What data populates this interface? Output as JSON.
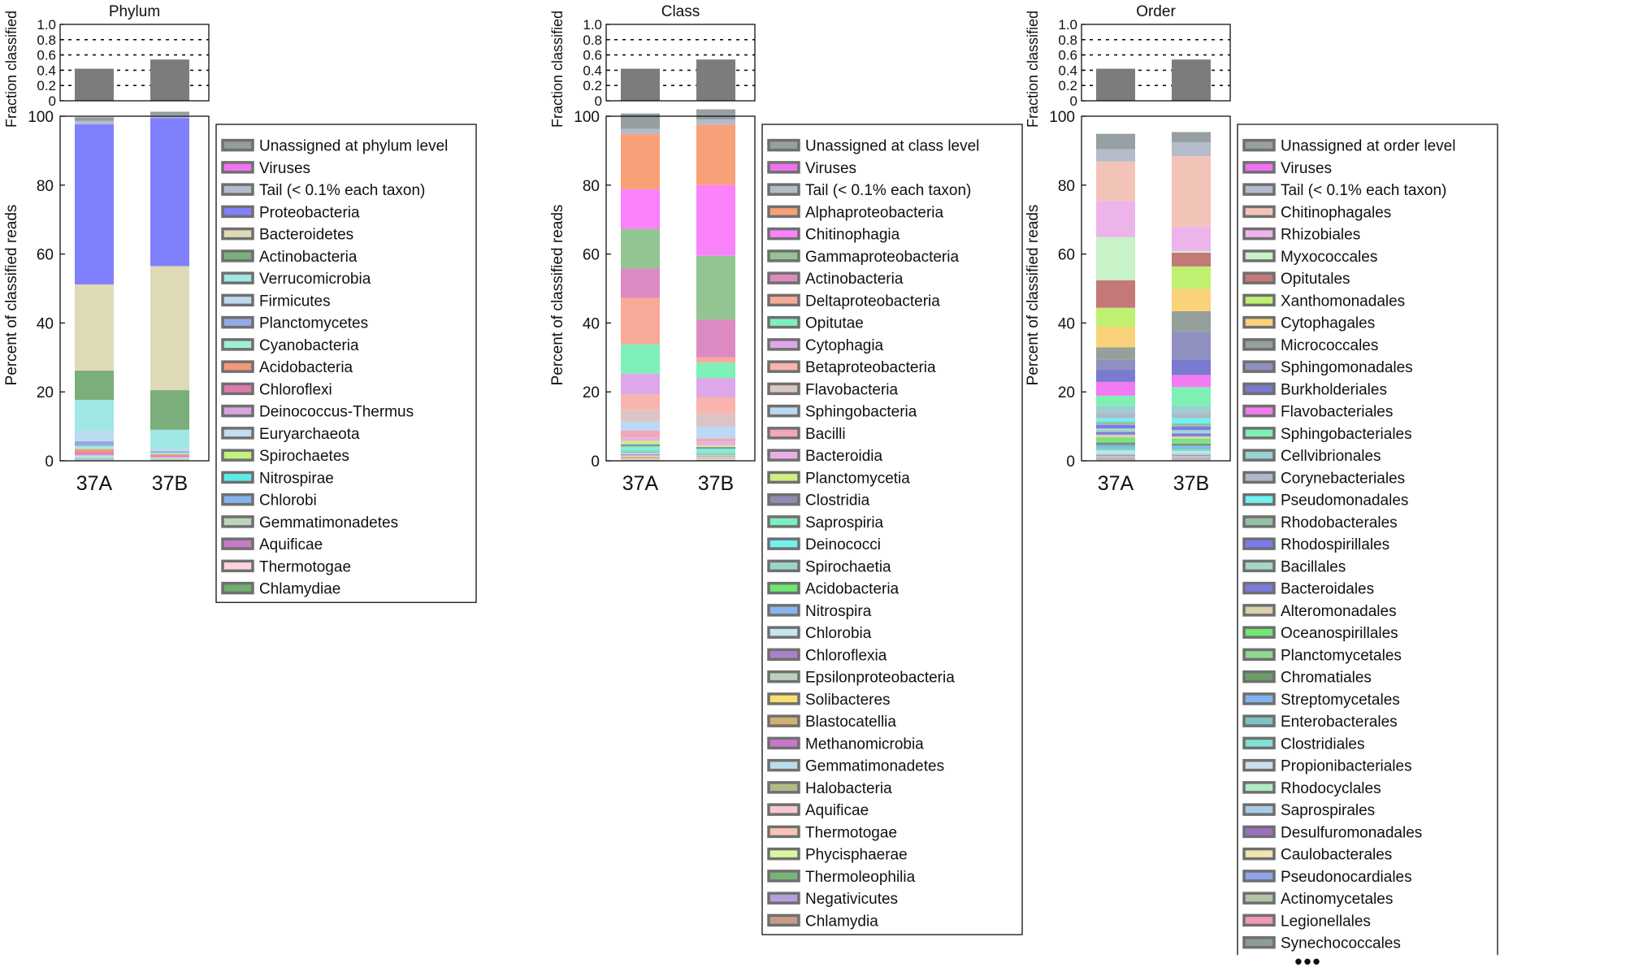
{
  "chart_data": [
    {
      "type": "stacked-bar",
      "title": "Phylum",
      "categories": [
        "37A",
        "37B"
      ],
      "fraction_chart": {
        "ylabel": "Fraction classified",
        "ylim": [
          0,
          1
        ],
        "yticks": [
          "0",
          "0.2",
          "0.4",
          "0.6",
          "0.8",
          "1.0"
        ],
        "values": [
          0.42,
          0.54
        ]
      },
      "ylabel": "Percent of classified reads",
      "ylim": [
        0,
        100
      ],
      "yticks": [
        "0",
        "20",
        "40",
        "60",
        "80",
        "100"
      ],
      "series": [
        {
          "name": "Unassigned at phylum level",
          "color": "#939c9e",
          "values": [
            1.0,
            1.0
          ]
        },
        {
          "name": "Viruses",
          "color": "#f074f0",
          "values": [
            0.0,
            0.0
          ]
        },
        {
          "name": "Tail (< 0.1% each taxon)",
          "color": "#b4bccc",
          "values": [
            1.0,
            0.8
          ]
        },
        {
          "name": "Proteobacteria",
          "color": "#8080fc",
          "values": [
            46.5,
            43.0
          ]
        },
        {
          "name": "Bacteroidetes",
          "color": "#dddab5",
          "values": [
            25.0,
            36.0
          ]
        },
        {
          "name": "Actinobacteria",
          "color": "#7aae7a",
          "values": [
            8.5,
            11.5
          ]
        },
        {
          "name": "Verrucomicrobia",
          "color": "#9fe8e4",
          "values": [
            9.0,
            5.5
          ]
        },
        {
          "name": "Firmicutes",
          "color": "#bcdaf0",
          "values": [
            3.0,
            0.7
          ]
        },
        {
          "name": "Planctomycetes",
          "color": "#95a8e8",
          "values": [
            1.4,
            0.5
          ]
        },
        {
          "name": "Cyanobacteria",
          "color": "#a0f0d0",
          "values": [
            0.9,
            0.4
          ]
        },
        {
          "name": "Acidobacteria",
          "color": "#f2997a",
          "values": [
            0.9,
            0.5
          ]
        },
        {
          "name": "Chloroflexi",
          "color": "#e07aae",
          "values": [
            0.6,
            0.3
          ]
        },
        {
          "name": "Deinococcus-Thermus",
          "color": "#d7a5e0",
          "values": [
            0.4,
            0.2
          ]
        },
        {
          "name": "Euryarchaeota",
          "color": "#c4ddf5",
          "values": [
            0.4,
            0.2
          ]
        },
        {
          "name": "Spirochaetes",
          "color": "#c3f27c",
          "values": [
            0.2,
            0.1
          ]
        },
        {
          "name": "Nitrospirae",
          "color": "#5deaea",
          "values": [
            0.2,
            0.1
          ]
        },
        {
          "name": "Chlorobi",
          "color": "#85b3ea",
          "values": [
            0.2,
            0.1
          ]
        },
        {
          "name": "Gemmatimonadetes",
          "color": "#bdd5bd",
          "values": [
            0.2,
            0.1
          ]
        },
        {
          "name": "Aquificae",
          "color": "#c47cc4",
          "values": [
            0.1,
            0.1
          ]
        },
        {
          "name": "Thermotogae",
          "color": "#fcd5dc",
          "values": [
            0.1,
            0.1
          ]
        },
        {
          "name": "Chlamydiae",
          "color": "#6fae6f",
          "values": [
            0.1,
            0.1
          ]
        }
      ]
    },
    {
      "type": "stacked-bar",
      "title": "Class",
      "categories": [
        "37A",
        "37B"
      ],
      "fraction_chart": {
        "ylabel": "Fraction classified",
        "ylim": [
          0,
          1
        ],
        "yticks": [
          "0",
          "0.2",
          "0.4",
          "0.6",
          "0.8",
          "1.0"
        ],
        "values": [
          0.42,
          0.54
        ]
      },
      "ylabel": "Percent of classified reads",
      "ylim": [
        0,
        100
      ],
      "yticks": [
        "0",
        "20",
        "40",
        "60",
        "80",
        "100"
      ],
      "series": [
        {
          "name": "Unassigned at class level",
          "color": "#969fa1",
          "values": [
            4.5,
            3.0
          ]
        },
        {
          "name": "Viruses",
          "color": "#f070f0",
          "values": [
            0.0,
            0.0
          ]
        },
        {
          "name": "Tail (< 0.1% each taxon)",
          "color": "#b4bccc",
          "values": [
            1.5,
            1.5
          ]
        },
        {
          "name": "Alphaproteobacteria",
          "color": "#f8a078",
          "values": [
            16.0,
            17.5
          ]
        },
        {
          "name": "Chitinophagia",
          "color": "#fa82fa",
          "values": [
            11.5,
            20.5
          ]
        },
        {
          "name": "Gammaproteobacteria",
          "color": "#92c592",
          "values": [
            11.5,
            18.5
          ]
        },
        {
          "name": "Actinobacteria",
          "color": "#de8ac2",
          "values": [
            8.5,
            11.0
          ]
        },
        {
          "name": "Deltaproteobacteria",
          "color": "#f8aa98",
          "values": [
            13.5,
            1.5
          ]
        },
        {
          "name": "Opitutae",
          "color": "#7df0b8",
          "values": [
            8.5,
            4.5
          ]
        },
        {
          "name": "Cytophagia",
          "color": "#dda8ea",
          "values": [
            6.0,
            5.5
          ]
        },
        {
          "name": "Betaproteobacteria",
          "color": "#f8b4ad",
          "values": [
            4.5,
            5.0
          ]
        },
        {
          "name": "Flavobacteria",
          "color": "#dcc4c4",
          "values": [
            3.5,
            3.5
          ]
        },
        {
          "name": "Sphingobacteria",
          "color": "#bcd8f2",
          "values": [
            2.5,
            3.5
          ]
        },
        {
          "name": "Bacilli",
          "color": "#f0a8b8",
          "values": [
            2.0,
            1.0
          ]
        },
        {
          "name": "Bacteroidia",
          "color": "#e6b0e6",
          "values": [
            1.0,
            1.0
          ]
        },
        {
          "name": "Planctomycetia",
          "color": "#cdf080",
          "values": [
            1.0,
            0.5
          ]
        },
        {
          "name": "Clostridia",
          "color": "#8c8cb0",
          "values": [
            0.6,
            0.5
          ]
        },
        {
          "name": "Saprospiria",
          "color": "#7af0c0",
          "values": [
            0.5,
            0.5
          ]
        },
        {
          "name": "Deinococci",
          "color": "#70f0f0",
          "values": [
            0.5,
            0.4
          ]
        },
        {
          "name": "Spirochaetia",
          "color": "#9ad6cc",
          "values": [
            0.4,
            0.4
          ]
        },
        {
          "name": "Acidobacteria",
          "color": "#6ee86e",
          "values": [
            0.3,
            0.3
          ]
        },
        {
          "name": "Nitrospira",
          "color": "#88b4f0",
          "values": [
            0.3,
            0.2
          ]
        },
        {
          "name": "Chlorobia",
          "color": "#c8e4f0",
          "values": [
            0.3,
            0.2
          ]
        },
        {
          "name": "Chloroflexia",
          "color": "#a882c8",
          "values": [
            0.3,
            0.2
          ]
        },
        {
          "name": "Epsilonproteobacteria",
          "color": "#bcd2bc",
          "values": [
            0.2,
            0.2
          ]
        },
        {
          "name": "Solibacteres",
          "color": "#f8e070",
          "values": [
            0.2,
            0.1
          ]
        },
        {
          "name": "Blastocatellia",
          "color": "#d2b070",
          "values": [
            0.2,
            0.1
          ]
        },
        {
          "name": "Methanomicrobia",
          "color": "#c878c8",
          "values": [
            0.2,
            0.1
          ]
        },
        {
          "name": "Gemmatimonadetes",
          "color": "#bcdced",
          "values": [
            0.1,
            0.1
          ]
        },
        {
          "name": "Halobacteria",
          "color": "#b0bc84",
          "values": [
            0.1,
            0.1
          ]
        },
        {
          "name": "Aquificae",
          "color": "#f8c8d2",
          "values": [
            0.1,
            0.1
          ]
        },
        {
          "name": "Thermotogae",
          "color": "#f8c4b4",
          "values": [
            0.1,
            0.1
          ]
        },
        {
          "name": "Phycisphaerae",
          "color": "#daf8a0",
          "values": [
            0.1,
            0.1
          ]
        },
        {
          "name": "Thermoleophilia",
          "color": "#78b478",
          "values": [
            0.1,
            0.1
          ]
        },
        {
          "name": "Negativicutes",
          "color": "#b4a0e0",
          "values": [
            0.1,
            0.1
          ]
        },
        {
          "name": "Chlamydia",
          "color": "#c49c88",
          "values": [
            0.1,
            0.1
          ]
        }
      ]
    },
    {
      "type": "stacked-bar",
      "title": "Order",
      "categories": [
        "37A",
        "37B"
      ],
      "fraction_chart": {
        "ylabel": "Fraction classified",
        "ylim": [
          0,
          1
        ],
        "yticks": [
          "0",
          "0.2",
          "0.4",
          "0.6",
          "0.8",
          "1.0"
        ],
        "values": [
          0.42,
          0.54
        ]
      },
      "ylabel": "Percent of classified reads",
      "ylim": [
        0,
        100
      ],
      "yticks": [
        "0",
        "20",
        "40",
        "60",
        "80",
        "100"
      ],
      "legend_more": "•••",
      "series": [
        {
          "name": "Unassigned at order level",
          "color": "#969fa1",
          "values": [
            4.5,
            3.0
          ]
        },
        {
          "name": "Viruses",
          "color": "#f070f0",
          "values": [
            0.0,
            0.0
          ]
        },
        {
          "name": "Tail (< 0.1% each taxon)",
          "color": "#b4bccc",
          "values": [
            3.5,
            4.0
          ]
        },
        {
          "name": "Chitinophagales",
          "color": "#f2c4b8",
          "values": [
            11.5,
            20.5
          ]
        },
        {
          "name": "Rhizobiales",
          "color": "#ecb4ea",
          "values": [
            10.5,
            7.0
          ]
        },
        {
          "name": "Myxococcales",
          "color": "#c8f2c8",
          "values": [
            12.5,
            0.5
          ]
        },
        {
          "name": "Opitutales",
          "color": "#c47878",
          "values": [
            8.0,
            4.0
          ]
        },
        {
          "name": "Xanthomonadales",
          "color": "#c0f070",
          "values": [
            5.5,
            6.5
          ]
        },
        {
          "name": "Cytophagales",
          "color": "#fad27a",
          "values": [
            6.0,
            6.5
          ]
        },
        {
          "name": "Micrococcales",
          "color": "#95a09a",
          "values": [
            3.5,
            6.0
          ]
        },
        {
          "name": "Sphingomonadales",
          "color": "#9090c0",
          "values": [
            3.0,
            8.0
          ]
        },
        {
          "name": "Burkholderiales",
          "color": "#7a7ad0",
          "values": [
            3.5,
            4.5
          ]
        },
        {
          "name": "Flavobacteriales",
          "color": "#f27af2",
          "values": [
            4.0,
            3.5
          ]
        },
        {
          "name": "Sphingobacteriales",
          "color": "#7ef0b4",
          "values": [
            3.0,
            5.5
          ]
        },
        {
          "name": "Cellvibrionales",
          "color": "#9ad0d0",
          "values": [
            2.0,
            2.0
          ]
        },
        {
          "name": "Corynebacteriales",
          "color": "#b0b8c8",
          "values": [
            1.5,
            1.5
          ]
        },
        {
          "name": "Pseudomonadales",
          "color": "#6ef2f2",
          "values": [
            1.0,
            1.5
          ]
        },
        {
          "name": "Rhodobacterales",
          "color": "#94c0a4",
          "values": [
            1.0,
            1.0
          ]
        },
        {
          "name": "Rhodospirillales",
          "color": "#7a7af0",
          "values": [
            1.0,
            1.0
          ]
        },
        {
          "name": "Bacillales",
          "color": "#a6d6c6",
          "values": [
            1.0,
            1.0
          ]
        },
        {
          "name": "Bacteroidales",
          "color": "#7a7ae0",
          "values": [
            0.8,
            0.8
          ]
        },
        {
          "name": "Alteromonadales",
          "color": "#dad0ac",
          "values": [
            0.8,
            0.7
          ]
        },
        {
          "name": "Oceanospirillales",
          "color": "#6ee86e",
          "values": [
            0.8,
            0.7
          ]
        },
        {
          "name": "Planctomycetales",
          "color": "#90d690",
          "values": [
            0.7,
            0.7
          ]
        },
        {
          "name": "Chromatiales",
          "color": "#6a9e6a",
          "values": [
            0.7,
            0.6
          ]
        },
        {
          "name": "Streptomycetales",
          "color": "#80b4f0",
          "values": [
            0.6,
            0.6
          ]
        },
        {
          "name": "Enterobacterales",
          "color": "#7ec4c4",
          "values": [
            0.6,
            0.5
          ]
        },
        {
          "name": "Clostridiales",
          "color": "#80e0d4",
          "values": [
            0.5,
            0.5
          ]
        },
        {
          "name": "Propionibacteriales",
          "color": "#c8e0f0",
          "values": [
            0.5,
            0.4
          ]
        },
        {
          "name": "Rhodocyclales",
          "color": "#b0ecc0",
          "values": [
            0.4,
            0.4
          ]
        },
        {
          "name": "Saprospirales",
          "color": "#a8cce8",
          "values": [
            0.4,
            0.4
          ]
        },
        {
          "name": "Desulfuromonadales",
          "color": "#9a70c0",
          "values": [
            0.3,
            0.3
          ]
        },
        {
          "name": "Caulobacterales",
          "color": "#f0e4b0",
          "values": [
            0.3,
            0.3
          ]
        },
        {
          "name": "Pseudonocardiales",
          "color": "#90a4e8",
          "values": [
            0.3,
            0.3
          ]
        },
        {
          "name": "Actinomycetales",
          "color": "#b0c4a4",
          "values": [
            0.3,
            0.3
          ]
        },
        {
          "name": "Legionellales",
          "color": "#f29ab4",
          "values": [
            0.2,
            0.2
          ]
        },
        {
          "name": "Synechococcales",
          "color": "#8c9c9c",
          "values": [
            0.2,
            0.2
          ]
        }
      ]
    }
  ]
}
